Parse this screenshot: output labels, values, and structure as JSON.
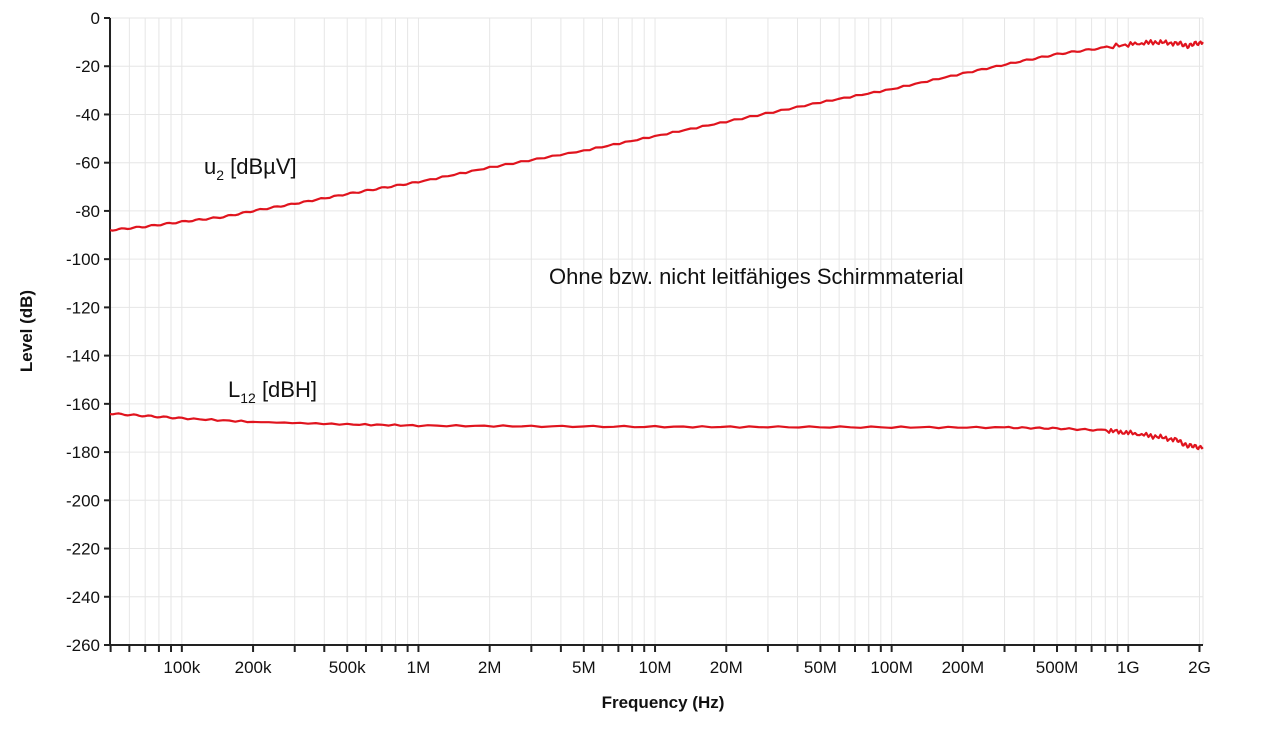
{
  "chart_data": {
    "type": "line",
    "title": "",
    "xlabel": "Frequency (Hz)",
    "ylabel": "Level (dB)",
    "xscale": "log",
    "xlim": [
      49700,
      2070000000
    ],
    "ylim": [
      -260,
      0
    ],
    "grid": true,
    "yticks": [
      0,
      -20,
      -40,
      -60,
      -80,
      -100,
      -120,
      -140,
      -160,
      -180,
      -200,
      -220,
      -240,
      -260
    ],
    "xticks": [
      {
        "value": 100000,
        "label": "100k"
      },
      {
        "value": 200000,
        "label": "200k"
      },
      {
        "value": 500000,
        "label": "500k"
      },
      {
        "value": 1000000,
        "label": "1M"
      },
      {
        "value": 2000000,
        "label": "2M"
      },
      {
        "value": 5000000,
        "label": "5M"
      },
      {
        "value": 10000000,
        "label": "10M"
      },
      {
        "value": 20000000,
        "label": "20M"
      },
      {
        "value": 50000000,
        "label": "50M"
      },
      {
        "value": 100000000,
        "label": "100M"
      },
      {
        "value": 200000000,
        "label": "200M"
      },
      {
        "value": 500000000,
        "label": "500M"
      },
      {
        "value": 1000000000,
        "label": "1G"
      },
      {
        "value": 2000000000,
        "label": "2G"
      }
    ],
    "series": [
      {
        "name": "u2 [dBµV]",
        "label_main": "u",
        "label_sub": "2",
        "label_unit": " [dBµV]",
        "color": "#e0141e",
        "x": [
          49700,
          70000,
          100000,
          150000,
          200000,
          300000,
          500000,
          700000,
          1000000,
          2000000,
          5000000,
          10000000,
          20000000,
          50000000,
          100000000,
          200000000,
          350000000,
          500000000,
          700000000,
          1000000000,
          1300000000,
          1600000000,
          1800000000,
          2070000000
        ],
        "y": [
          -88,
          -86.5,
          -84.5,
          -82.5,
          -80,
          -77,
          -73,
          -70.5,
          -68,
          -62,
          -55,
          -49,
          -43,
          -35,
          -29.5,
          -23,
          -18,
          -15,
          -13,
          -11,
          -10,
          -10.5,
          -11.5,
          -10
        ]
      },
      {
        "name": "L12 [dBH]",
        "label_main": "L",
        "label_sub": "12",
        "label_unit": " [dBH]",
        "color": "#e0141e",
        "x": [
          49700,
          70000,
          100000,
          200000,
          500000,
          1000000,
          3000000,
          10000000,
          30000000,
          100000000,
          300000000,
          500000000,
          800000000,
          1000000000,
          1300000000,
          1600000000,
          1800000000,
          2070000000
        ],
        "y": [
          -164,
          -165,
          -166,
          -167.5,
          -168.5,
          -169,
          -169.3,
          -169.5,
          -169.6,
          -169.7,
          -169.8,
          -170.2,
          -171,
          -172,
          -173.5,
          -175,
          -177.5,
          -178
        ]
      }
    ],
    "annotations": [
      "Ohne bzw. nicht leitfähiges Schirmmaterial"
    ]
  }
}
